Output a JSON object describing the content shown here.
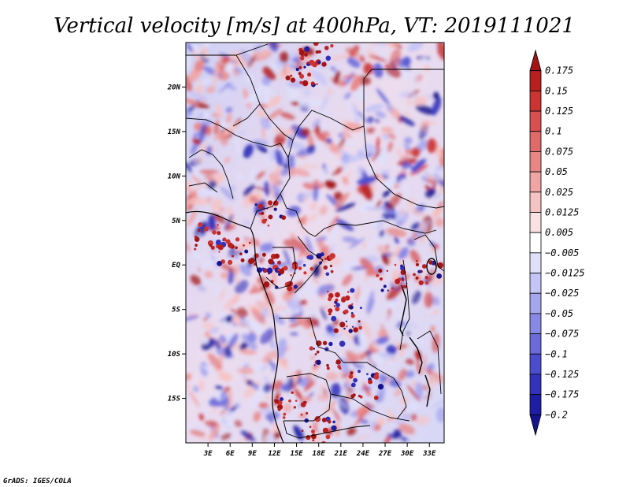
{
  "title": "Vertical velocity [m/s] at 400hPa, VT: 2019111021",
  "footer": "GrADS: IGES/COLA",
  "y_axis_labels": [
    "20N",
    "15N",
    "10N",
    "5N",
    "EQ",
    "5S",
    "10S",
    "15S"
  ],
  "x_axis_labels": [
    "3E",
    "6E",
    "9E",
    "12E",
    "15E",
    "18E",
    "21E",
    "24E",
    "27E",
    "30E",
    "33E"
  ],
  "colorbar_labels": [
    "0.175",
    "0.15",
    "0.125",
    "0.1",
    "0.075",
    "0.05",
    "0.025",
    "0.0125",
    "0.005",
    "−0.005",
    "−0.0125",
    "−0.025",
    "−0.05",
    "−0.075",
    "−0.1",
    "−0.125",
    "−0.175",
    "−0.2"
  ],
  "colorbar_colors": [
    "#a31414",
    "#b91f1f",
    "#cc3333",
    "#d85050",
    "#e06a6a",
    "#e88686",
    "#f0a4a4",
    "#f6c3c3",
    "#fbe1e1",
    "#ffffff",
    "#e0e0fb",
    "#c4c4f6",
    "#a6a6ee",
    "#8888e6",
    "#6a6adb",
    "#4c4ccf",
    "#3232bc",
    "#1e1ea4",
    "#15148e"
  ],
  "colors": {
    "positive_top": "#a31414",
    "negative_bottom": "#15148e",
    "border": "#000000"
  },
  "chart_data": {
    "type": "heatmap",
    "variable": "Vertical velocity",
    "units": "m/s",
    "level": "400hPa",
    "valid_time": "2019111021",
    "lon_range": [
      0,
      35
    ],
    "lat_range": [
      -20,
      25
    ],
    "lon_ticks": [
      3,
      6,
      9,
      12,
      15,
      18,
      21,
      24,
      27,
      30,
      33
    ],
    "lat_ticks": [
      20,
      15,
      10,
      5,
      0,
      -5,
      -10,
      -15
    ],
    "contour_levels": [
      -0.2,
      -0.175,
      -0.125,
      -0.1,
      -0.075,
      -0.05,
      -0.025,
      -0.0125,
      -0.005,
      0.005,
      0.0125,
      0.025,
      0.05,
      0.075,
      0.1,
      0.125,
      0.15,
      0.175
    ]
  }
}
